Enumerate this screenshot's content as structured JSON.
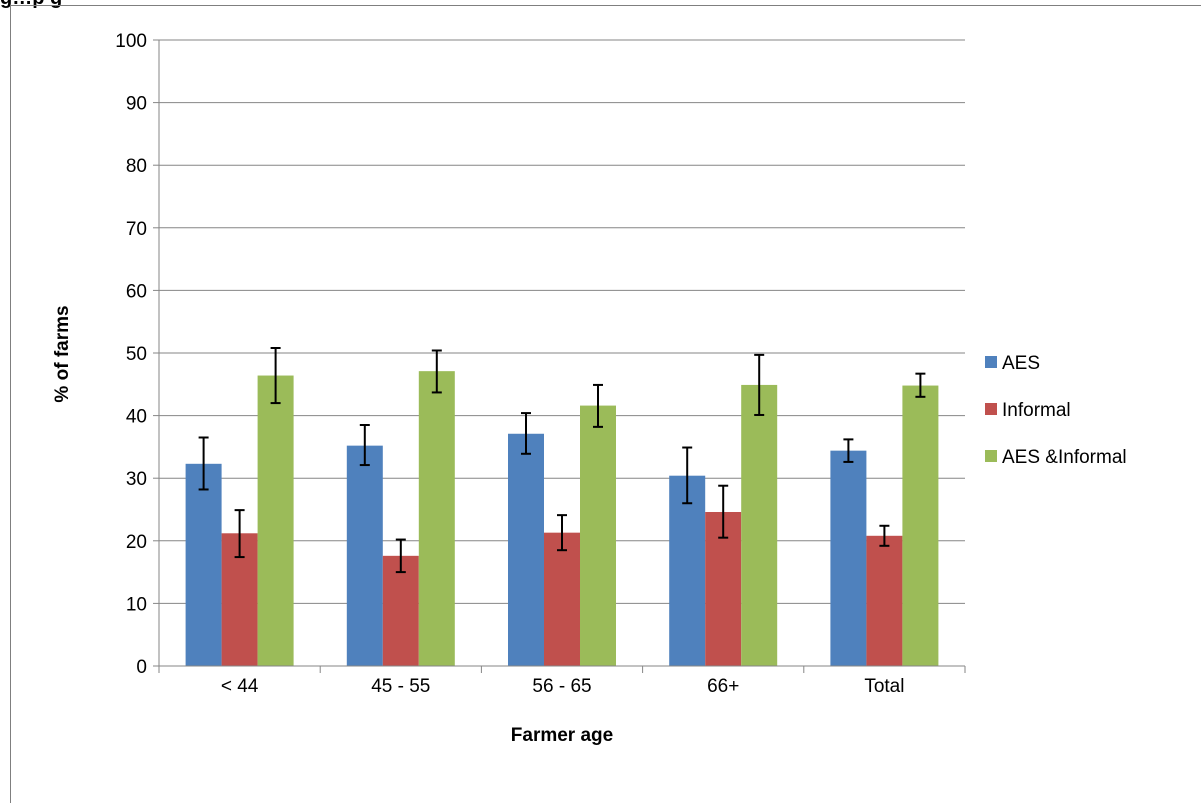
{
  "header": {
    "cropped_text": "g…p g"
  },
  "chart_data": {
    "type": "bar",
    "title": "",
    "xlabel": "Farmer age",
    "ylabel": "% of farms",
    "ylim": [
      0,
      100
    ],
    "yticks": [
      0,
      10,
      20,
      30,
      40,
      50,
      60,
      70,
      80,
      90,
      100
    ],
    "grid": true,
    "legend_position": "right",
    "categories": [
      "< 44",
      "45 - 55",
      "56 - 65",
      "66+",
      "Total"
    ],
    "series": [
      {
        "name": "AES",
        "color": "#4f81bd",
        "values": [
          32.3,
          35.2,
          37.1,
          30.4,
          34.4
        ],
        "error_low": [
          28.2,
          32.1,
          33.9,
          26.0,
          32.6
        ],
        "error_high": [
          36.5,
          38.5,
          40.4,
          34.9,
          36.2
        ]
      },
      {
        "name": "Informal",
        "color": "#c0504d",
        "values": [
          21.2,
          17.6,
          21.3,
          24.6,
          20.8
        ],
        "error_low": [
          17.4,
          15.0,
          18.5,
          20.5,
          19.2
        ],
        "error_high": [
          24.9,
          20.2,
          24.1,
          28.8,
          22.4
        ]
      },
      {
        "name": "AES &Informal",
        "color": "#9bbb59",
        "values": [
          46.4,
          47.1,
          41.6,
          44.9,
          44.8
        ],
        "error_low": [
          42.0,
          43.7,
          38.2,
          40.1,
          43.0
        ],
        "error_high": [
          50.8,
          50.4,
          44.9,
          49.7,
          46.7
        ]
      }
    ]
  }
}
